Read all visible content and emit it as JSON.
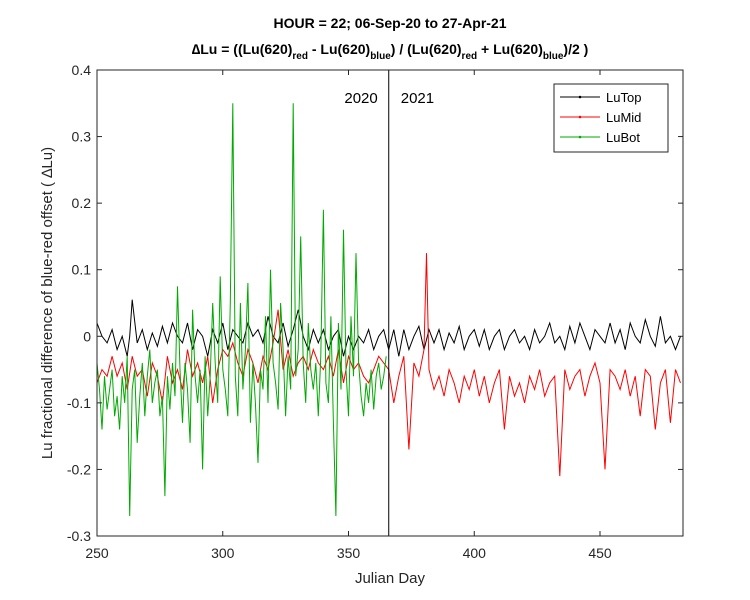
{
  "title": {
    "line1": "HOUR = 22; 06-Sep-20 to 27-Apr-21",
    "line2_prefix": "∆Lu = ((Lu(620)",
    "sub_red": "red",
    "minus": " - Lu(620)",
    "sub_blue": "blue",
    "divide": ") / (Lu(620)",
    "plus": " + Lu(620)",
    "suffix": ")/2  )"
  },
  "chart_data": {
    "type": "line",
    "xlabel": "Julian Day",
    "ylabel": "Lu fractional difference of blue-red offset (  ∆Lu)",
    "xlim": [
      250,
      483
    ],
    "ylim": [
      -0.3,
      0.4
    ],
    "xticks": [
      250,
      300,
      350,
      400,
      450
    ],
    "yticks": [
      -0.3,
      -0.2,
      -0.1,
      0,
      0.1,
      0.2,
      0.3,
      0.4
    ],
    "vline": {
      "x": 366,
      "left_label": "2020",
      "right_label": "2021"
    },
    "legend": {
      "placement": "top-right"
    },
    "series": [
      {
        "name": "LuTop",
        "color": "#000000",
        "x": [
          250,
          252,
          254,
          256,
          258,
          260,
          262,
          263,
          264,
          266,
          268,
          270,
          272,
          274,
          276,
          278,
          280,
          282,
          284,
          286,
          288,
          290,
          292,
          294,
          296,
          298,
          300,
          302,
          304,
          306,
          308,
          310,
          312,
          314,
          316,
          318,
          320,
          322,
          324,
          326,
          328,
          330,
          332,
          334,
          336,
          338,
          340,
          342,
          344,
          346,
          348,
          350,
          352,
          354,
          356,
          358,
          360,
          362,
          364,
          366,
          368,
          370,
          372,
          374,
          376,
          378,
          380,
          382,
          384,
          386,
          388,
          390,
          392,
          394,
          396,
          398,
          400,
          402,
          404,
          406,
          408,
          410,
          412,
          414,
          416,
          418,
          420,
          422,
          424,
          426,
          428,
          430,
          432,
          434,
          436,
          438,
          440,
          442,
          444,
          446,
          448,
          450,
          452,
          454,
          456,
          458,
          460,
          462,
          464,
          466,
          468,
          470,
          472,
          474,
          476,
          478,
          480,
          482
        ],
        "y": [
          0.02,
          0.0,
          -0.01,
          0.01,
          -0.02,
          0.0,
          -0.03,
          0.0,
          0.055,
          -0.01,
          0.01,
          -0.02,
          0.005,
          -0.015,
          0.015,
          -0.01,
          0.02,
          0.0,
          -0.01,
          0.02,
          -0.02,
          0.01,
          0.0,
          -0.03,
          0.01,
          -0.01,
          0.02,
          -0.02,
          0.01,
          0.0,
          -0.01,
          0.02,
          0.0,
          0.01,
          -0.01,
          0.03,
          0.0,
          -0.01,
          0.02,
          -0.015,
          0.01,
          0.04,
          0.0,
          -0.02,
          0.01,
          -0.01,
          0.01,
          -0.02,
          0.0,
          0.01,
          -0.03,
          0.0,
          -0.02,
          0.0,
          -0.01,
          0.01,
          -0.02,
          0.0,
          0.01,
          -0.02,
          0.01,
          -0.03,
          0.01,
          -0.02,
          0.0,
          0.015,
          -0.02,
          0.01,
          -0.01,
          0.01,
          -0.02,
          0.005,
          -0.01,
          0.015,
          -0.02,
          0.0,
          0.01,
          -0.015,
          0.01,
          -0.02,
          0.0,
          0.01,
          -0.02,
          0.0,
          0.01,
          -0.01,
          0.0,
          -0.02,
          0.01,
          -0.01,
          0.0,
          0.02,
          -0.01,
          0.0,
          -0.02,
          0.015,
          -0.01,
          0.02,
          0.0,
          -0.02,
          0.01,
          0.0,
          -0.01,
          0.02,
          -0.01,
          0.01,
          -0.02,
          0.02,
          0.0,
          -0.01,
          0.025,
          0.0,
          -0.015,
          0.03,
          -0.01,
          0.0,
          -0.02,
          0.0
        ]
      },
      {
        "name": "LuMid",
        "color": "#ff0000",
        "x": [
          250,
          252,
          254,
          256,
          258,
          260,
          262,
          264,
          266,
          268,
          270,
          272,
          274,
          276,
          278,
          280,
          282,
          284,
          286,
          288,
          290,
          292,
          294,
          296,
          298,
          300,
          302,
          304,
          306,
          308,
          310,
          312,
          314,
          316,
          318,
          320,
          322,
          324,
          326,
          328,
          330,
          332,
          334,
          336,
          338,
          340,
          342,
          344,
          346,
          348,
          350,
          352,
          354,
          356,
          358,
          360,
          362,
          364,
          366,
          368,
          370,
          372,
          374,
          376,
          378,
          380,
          381,
          382,
          384,
          386,
          388,
          390,
          392,
          394,
          396,
          398,
          400,
          402,
          404,
          406,
          408,
          410,
          412,
          414,
          416,
          418,
          420,
          422,
          424,
          426,
          428,
          430,
          432,
          434,
          436,
          438,
          440,
          442,
          444,
          446,
          448,
          450,
          452,
          454,
          456,
          458,
          460,
          462,
          464,
          466,
          468,
          470,
          472,
          474,
          476,
          478,
          480,
          482
        ],
        "y": [
          -0.07,
          -0.05,
          -0.06,
          -0.03,
          -0.06,
          -0.04,
          -0.08,
          -0.03,
          -0.06,
          -0.05,
          -0.09,
          -0.04,
          -0.06,
          -0.1,
          -0.03,
          -0.07,
          -0.05,
          -0.08,
          -0.02,
          -0.06,
          -0.04,
          -0.07,
          -0.03,
          -0.1,
          -0.05,
          -0.02,
          -0.03,
          -0.01,
          -0.04,
          -0.06,
          -0.02,
          -0.04,
          -0.07,
          -0.03,
          -0.05,
          -0.01,
          0.04,
          -0.05,
          -0.02,
          -0.06,
          -0.04,
          -0.03,
          -0.05,
          -0.02,
          -0.04,
          -0.05,
          -0.03,
          -0.06,
          -0.02,
          -0.07,
          -0.03,
          -0.05,
          -0.04,
          -0.06,
          -0.07,
          -0.05,
          -0.03,
          -0.04,
          -0.05,
          -0.1,
          -0.06,
          -0.03,
          -0.17,
          -0.04,
          -0.06,
          -0.02,
          0.125,
          -0.05,
          -0.08,
          -0.06,
          -0.09,
          -0.05,
          -0.07,
          -0.1,
          -0.06,
          -0.08,
          -0.05,
          -0.09,
          -0.06,
          -0.1,
          -0.07,
          -0.05,
          -0.14,
          -0.06,
          -0.09,
          -0.07,
          -0.1,
          -0.06,
          -0.08,
          -0.05,
          -0.09,
          -0.07,
          -0.06,
          -0.21,
          -0.05,
          -0.08,
          -0.06,
          -0.05,
          -0.09,
          -0.06,
          -0.04,
          -0.07,
          -0.2,
          -0.05,
          -0.06,
          -0.08,
          -0.05,
          -0.09,
          -0.06,
          -0.12,
          -0.05,
          -0.06,
          -0.14,
          -0.07,
          -0.05,
          -0.13,
          -0.05,
          -0.07
        ]
      },
      {
        "name": "LuBot",
        "color": "#00aa00",
        "x": [
          250,
          251,
          252,
          253,
          254,
          255,
          256,
          257,
          258,
          259,
          260,
          261,
          262,
          263,
          264,
          265,
          266,
          267,
          268,
          269,
          270,
          271,
          272,
          273,
          274,
          275,
          276,
          277,
          278,
          279,
          280,
          281,
          282,
          283,
          284,
          285,
          286,
          287,
          288,
          289,
          290,
          291,
          292,
          293,
          294,
          295,
          296,
          297,
          298,
          299,
          300,
          301,
          302,
          303,
          304,
          305,
          306,
          307,
          308,
          309,
          310,
          311,
          312,
          313,
          314,
          315,
          316,
          317,
          318,
          319,
          320,
          321,
          322,
          323,
          324,
          325,
          326,
          327,
          328,
          329,
          330,
          331,
          332,
          333,
          334,
          335,
          336,
          337,
          338,
          339,
          340,
          341,
          342,
          343,
          344,
          345,
          346,
          347,
          348,
          349,
          350,
          351,
          352,
          353,
          354,
          355,
          356,
          357,
          358,
          359,
          360,
          361,
          362,
          363,
          364,
          365
        ],
        "y": [
          -0.04,
          -0.08,
          -0.14,
          -0.06,
          -0.11,
          -0.08,
          -0.05,
          -0.12,
          -0.09,
          -0.14,
          -0.06,
          -0.1,
          -0.03,
          -0.27,
          -0.08,
          -0.05,
          -0.16,
          -0.09,
          -0.04,
          -0.12,
          -0.06,
          -0.02,
          -0.1,
          -0.07,
          -0.05,
          -0.12,
          -0.09,
          -0.24,
          -0.06,
          -0.11,
          -0.04,
          -0.09,
          0.075,
          -0.05,
          -0.13,
          -0.04,
          -0.08,
          -0.16,
          0.04,
          -0.06,
          -0.1,
          -0.05,
          -0.2,
          -0.03,
          -0.12,
          -0.06,
          0.05,
          -0.04,
          -0.1,
          0.09,
          -0.05,
          -0.08,
          -0.12,
          0.05,
          0.35,
          -0.06,
          -0.12,
          0.05,
          -0.08,
          -0.02,
          0.08,
          -0.13,
          -0.04,
          -0.1,
          -0.19,
          -0.05,
          -0.08,
          0.03,
          -0.1,
          0.1,
          -0.04,
          -0.07,
          -0.11,
          0.05,
          -0.02,
          -0.12,
          -0.03,
          -0.08,
          0.35,
          -0.06,
          -0.02,
          0.15,
          -0.04,
          -0.1,
          0.02,
          -0.05,
          -0.08,
          -0.04,
          -0.12,
          -0.03,
          0.19,
          -0.07,
          -0.1,
          0.03,
          -0.13,
          -0.27,
          0.02,
          -0.08,
          0.16,
          -0.05,
          -0.12,
          0.03,
          -0.06,
          0.125,
          -0.04,
          -0.09,
          -0.12,
          -0.07,
          -0.1,
          -0.05,
          -0.11,
          -0.06,
          -0.04,
          -0.08,
          -0.06,
          -0.03
        ]
      }
    ]
  }
}
